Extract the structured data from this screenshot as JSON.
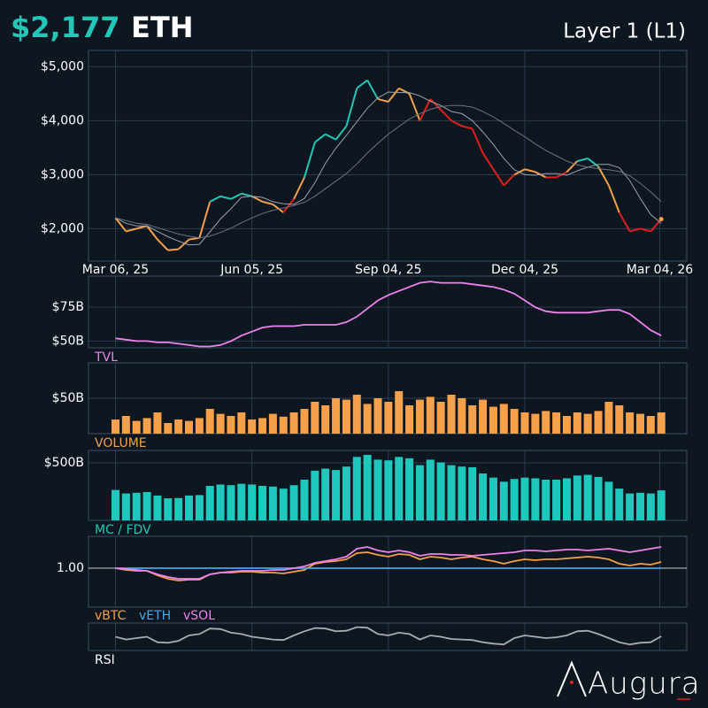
{
  "header": {
    "price": "$2,177",
    "symbol": "ETH",
    "category": "Layer 1 (L1)"
  },
  "brand": "Augura",
  "chart_data": [
    {
      "type": "line",
      "x": [
        "2025-03-06",
        "2025-03-13",
        "2025-03-20",
        "2025-03-27",
        "2025-04-03",
        "2025-04-10",
        "2025-04-17",
        "2025-04-24",
        "2025-05-01",
        "2025-05-08",
        "2025-05-15",
        "2025-05-22",
        "2025-05-29",
        "2025-06-05",
        "2025-06-12",
        "2025-06-19",
        "2025-06-26",
        "2025-07-03",
        "2025-07-10",
        "2025-07-17",
        "2025-07-24",
        "2025-07-31",
        "2025-08-07",
        "2025-08-14",
        "2025-08-21",
        "2025-08-28",
        "2025-09-04",
        "2025-09-11",
        "2025-09-18",
        "2025-09-25",
        "2025-10-02",
        "2025-10-09",
        "2025-10-16",
        "2025-10-23",
        "2025-10-30",
        "2025-11-06",
        "2025-11-13",
        "2025-11-20",
        "2025-11-27",
        "2025-12-04",
        "2025-12-11",
        "2025-12-18",
        "2025-12-25",
        "2026-01-01",
        "2026-01-08",
        "2026-01-15",
        "2026-01-22",
        "2026-01-29",
        "2026-02-05",
        "2026-02-12",
        "2026-02-19",
        "2026-02-26",
        "2026-03-05"
      ],
      "xlim": [
        "2025-02-16",
        "2026-03-22"
      ],
      "xticks": [
        {
          "value": "2025-03-06",
          "label": "Mar 06, 25"
        },
        {
          "value": "2025-06-05",
          "label": "Jun 05, 25"
        },
        {
          "value": "2025-09-04",
          "label": "Sep 04, 25"
        },
        {
          "value": "2025-12-04",
          "label": "Dec 04, 25"
        },
        {
          "value": "2026-03-04",
          "label": "Mar 04, 26"
        }
      ],
      "ylim": [
        1400,
        5300
      ],
      "yticks": [
        {
          "value": 2000,
          "label": "$2,000"
        },
        {
          "value": 3000,
          "label": "$3,000"
        },
        {
          "value": 4000,
          "label": "$4,000"
        },
        {
          "value": 5000,
          "label": "$5,000"
        }
      ],
      "series": [
        {
          "values": [
            2200,
            1950,
            2000,
            2050,
            1800,
            1600,
            1620,
            1800,
            1830,
            2500,
            2600,
            2550,
            2650,
            2600,
            2500,
            2450,
            2300,
            2550,
            2950,
            3600,
            3750,
            3650,
            3900,
            4600,
            4750,
            4400,
            4350,
            4600,
            4500,
            4000,
            4400,
            4200,
            4000,
            3900,
            3850,
            3400,
            3100,
            2800,
            3000,
            3100,
            3050,
            2950,
            2950,
            3050,
            3250,
            3300,
            3150,
            2800,
            2300,
            1950,
            2000,
            1950,
            2177
          ],
          "colors": [
            "#f5a04a",
            "#f5a04a",
            "#f5a04a",
            "#f5a04a",
            "#f5a04a",
            "#f5a04a",
            "#f5a04a",
            "#f5a04a",
            "#f5a04a",
            "#22c7b8",
            "#22c7b8",
            "#22c7b8",
            "#22c7b8",
            "#f5a04a",
            "#f5a04a",
            "#f5a04a",
            "#e0201c",
            "#f5a04a",
            "#22c7b8",
            "#22c7b8",
            "#22c7b8",
            "#22c7b8",
            "#22c7b8",
            "#22c7b8",
            "#22c7b8",
            "#f5a04a",
            "#f5a04a",
            "#f5a04a",
            "#f5a04a",
            "#e0201c",
            "#e0201c",
            "#e0201c",
            "#e0201c",
            "#e0201c",
            "#e0201c",
            "#e0201c",
            "#e0201c",
            "#e0201c",
            "#f5a04a",
            "#f5a04a",
            "#f5a04a",
            "#e0201c",
            "#e0201c",
            "#f5a04a",
            "#22c7b8",
            "#22c7b8",
            "#f5a04a",
            "#f5a04a",
            "#e0201c",
            "#e0201c",
            "#e0201c",
            "#e0201c",
            "#f5a04a"
          ]
        },
        {
          "color": "#9aa3ad",
          "values": [
            2200,
            2100,
            2050,
            2050,
            1950,
            1850,
            1770,
            1700,
            1710,
            1940,
            2180,
            2370,
            2580,
            2600,
            2580,
            2500,
            2460,
            2450,
            2560,
            2850,
            3210,
            3490,
            3730,
            3980,
            4230,
            4420,
            4530,
            4520,
            4520,
            4460,
            4360,
            4280,
            4170,
            4130,
            4000,
            3790,
            3560,
            3300,
            3090,
            3000,
            2990,
            3020,
            3020,
            2990,
            3070,
            3140,
            3190,
            3190,
            3130,
            2890,
            2560,
            2260,
            2100
          ]
        },
        {
          "color": "#6b7480",
          "values": [
            2200,
            2150,
            2100,
            2080,
            2020,
            1960,
            1900,
            1860,
            1830,
            1860,
            1930,
            2010,
            2110,
            2200,
            2280,
            2340,
            2380,
            2430,
            2490,
            2600,
            2740,
            2880,
            3020,
            3200,
            3400,
            3580,
            3750,
            3890,
            4030,
            4130,
            4210,
            4260,
            4280,
            4280,
            4250,
            4170,
            4070,
            3950,
            3820,
            3700,
            3570,
            3450,
            3350,
            3250,
            3180,
            3140,
            3110,
            3090,
            3060,
            2980,
            2840,
            2680,
            2500
          ]
        }
      ]
    },
    {
      "type": "line",
      "title": "TVL",
      "title_color": "#ee82ee",
      "ylim": [
        45,
        98
      ],
      "yticks": [
        {
          "value": 50,
          "label": "$50B"
        },
        {
          "value": 75,
          "label": "$75B"
        }
      ],
      "series": [
        {
          "color": "#ee82ee",
          "values": [
            52,
            51,
            50,
            50,
            49,
            49,
            48,
            47,
            46,
            46,
            47,
            50,
            54,
            57,
            60,
            61,
            61,
            61,
            62,
            62,
            62,
            62,
            64,
            68,
            74,
            80,
            84,
            87,
            90,
            93,
            94,
            93,
            93,
            93,
            92,
            91,
            90,
            88,
            85,
            80,
            75,
            72,
            71,
            71,
            71,
            71,
            72,
            73,
            73,
            70,
            64,
            58,
            54
          ]
        }
      ]
    },
    {
      "type": "bar",
      "title": "VOLUME",
      "title_color": "#f5a04a",
      "color": "#f5a04a",
      "ylim": [
        0,
        100
      ],
      "yticks": [
        {
          "value": 50,
          "label": "$50B"
        }
      ],
      "values": [
        20,
        25,
        18,
        22,
        30,
        15,
        20,
        18,
        22,
        35,
        28,
        25,
        30,
        20,
        22,
        28,
        24,
        30,
        35,
        45,
        40,
        50,
        48,
        55,
        42,
        50,
        45,
        60,
        40,
        48,
        52,
        45,
        55,
        50,
        40,
        48,
        38,
        42,
        35,
        30,
        28,
        32,
        30,
        25,
        30,
        28,
        32,
        45,
        40,
        30,
        28,
        25,
        30
      ]
    },
    {
      "type": "bar",
      "title": "MC / FDV",
      "title_color": "#22c7b8",
      "color": "#1ec8bd",
      "ylim": [
        0,
        608
      ],
      "yticks": [
        {
          "value": 500,
          "label": "$500B"
        }
      ],
      "values": [
        264,
        234,
        240,
        246,
        216,
        192,
        194,
        216,
        220,
        300,
        312,
        306,
        318,
        312,
        300,
        294,
        276,
        306,
        354,
        432,
        450,
        438,
        468,
        552,
        570,
        528,
        522,
        552,
        540,
        480,
        528,
        504,
        480,
        468,
        462,
        408,
        372,
        336,
        360,
        372,
        366,
        354,
        354,
        366,
        390,
        396,
        378,
        336,
        276,
        234,
        240,
        234,
        261
      ]
    },
    {
      "type": "line",
      "ylim": [
        0.56,
        1.36
      ],
      "yticks": [
        {
          "value": 1,
          "label": "1.00"
        }
      ],
      "series": [
        {
          "name": "vBTC",
          "color": "#f5a04a",
          "values": [
            1.0,
            0.98,
            0.97,
            0.97,
            0.92,
            0.88,
            0.86,
            0.87,
            0.87,
            0.93,
            0.95,
            0.95,
            0.96,
            0.96,
            0.95,
            0.95,
            0.94,
            0.96,
            0.98,
            1.05,
            1.07,
            1.08,
            1.1,
            1.17,
            1.18,
            1.15,
            1.13,
            1.16,
            1.15,
            1.1,
            1.13,
            1.12,
            1.1,
            1.12,
            1.13,
            1.1,
            1.08,
            1.05,
            1.08,
            1.1,
            1.09,
            1.1,
            1.1,
            1.11,
            1.12,
            1.13,
            1.12,
            1.1,
            1.05,
            1.03,
            1.05,
            1.04,
            1.07
          ]
        },
        {
          "name": "vETH",
          "color": "#3fa9f5",
          "values": [
            1,
            1,
            1,
            1,
            1,
            1,
            1,
            1,
            1,
            1,
            1,
            1,
            1,
            1,
            1,
            1,
            1,
            1,
            1,
            1,
            1,
            1,
            1,
            1,
            1,
            1,
            1,
            1,
            1,
            1,
            1,
            1,
            1,
            1,
            1,
            1,
            1,
            1,
            1,
            1,
            1,
            1,
            1,
            1,
            1,
            1,
            1,
            1,
            1,
            1,
            1,
            1,
            1
          ]
        },
        {
          "name": "vSOL",
          "color": "#ee82ee",
          "values": [
            1.0,
            0.99,
            0.98,
            0.97,
            0.93,
            0.9,
            0.88,
            0.88,
            0.88,
            0.93,
            0.95,
            0.96,
            0.97,
            0.97,
            0.97,
            0.98,
            0.98,
            1.0,
            1.02,
            1.06,
            1.08,
            1.1,
            1.13,
            1.22,
            1.24,
            1.2,
            1.18,
            1.2,
            1.18,
            1.14,
            1.16,
            1.16,
            1.15,
            1.15,
            1.14,
            1.15,
            1.16,
            1.17,
            1.18,
            1.2,
            1.2,
            1.19,
            1.2,
            1.21,
            1.21,
            1.2,
            1.21,
            1.22,
            1.2,
            1.18,
            1.2,
            1.22,
            1.24
          ]
        }
      ]
    },
    {
      "type": "line",
      "title": "RSI",
      "title_color": "#ffffff",
      "ylim": [
        0,
        100
      ],
      "series": [
        {
          "color": "#a8adb3",
          "values": [
            50,
            40,
            45,
            50,
            30,
            28,
            35,
            55,
            60,
            80,
            78,
            65,
            60,
            50,
            45,
            40,
            38,
            55,
            70,
            82,
            80,
            70,
            72,
            85,
            83,
            60,
            55,
            65,
            60,
            40,
            55,
            50,
            42,
            40,
            38,
            30,
            25,
            22,
            45,
            55,
            50,
            45,
            48,
            55,
            70,
            72,
            60,
            45,
            30,
            22,
            28,
            30,
            52
          ]
        }
      ]
    }
  ]
}
